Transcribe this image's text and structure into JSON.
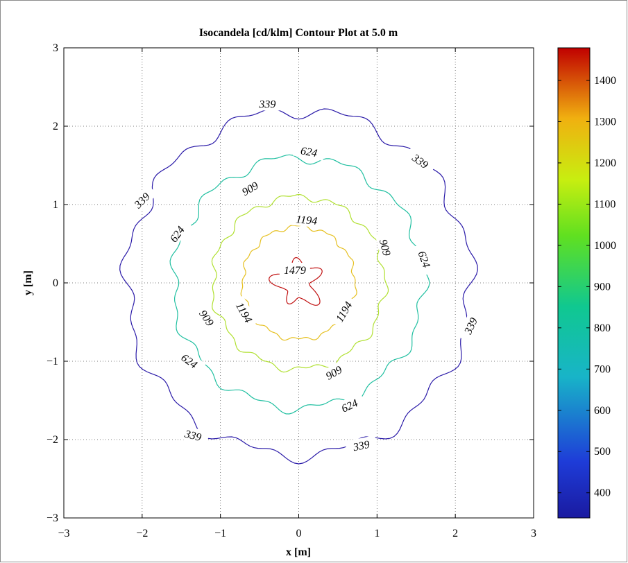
{
  "chart_data": {
    "type": "contour",
    "title": "Isocandela [cd/klm] Contour Plot at 5.0 m",
    "xlabel": "x [m]",
    "ylabel": "y [m]",
    "xlim": [
      -3,
      3
    ],
    "ylim": [
      -3,
      3
    ],
    "xticks": [
      -3,
      -2,
      -1,
      0,
      1,
      2,
      3
    ],
    "yticks": [
      -3,
      -2,
      -1,
      0,
      1,
      2,
      3
    ],
    "grid": true,
    "colorbar": {
      "range": [
        339,
        1479
      ],
      "ticks": [
        400,
        500,
        600,
        700,
        800,
        900,
        1000,
        1100,
        1200,
        1300,
        1400
      ],
      "colormap": "jet"
    },
    "levels": [
      {
        "value": 339,
        "radius_m": 2.2,
        "color": "#2a1aa8",
        "labels": [
          {
            "text": "339",
            "x": -0.4,
            "y": 2.28,
            "rot": 0
          },
          {
            "text": "339",
            "x": 1.55,
            "y": 1.55,
            "rot": 35
          },
          {
            "text": "339",
            "x": -2.0,
            "y": 1.05,
            "rot": -45
          },
          {
            "text": "339",
            "x": 2.2,
            "y": -0.55,
            "rot": -65
          },
          {
            "text": "339",
            "x": -1.35,
            "y": -1.95,
            "rot": 15
          },
          {
            "text": "339",
            "x": 0.8,
            "y": -2.08,
            "rot": -12
          }
        ]
      },
      {
        "value": 624,
        "radius_m": 1.6,
        "color": "#1fbfa0",
        "labels": [
          {
            "text": "624",
            "x": 0.13,
            "y": 1.67,
            "rot": 10
          },
          {
            "text": "624",
            "x": -1.55,
            "y": 0.62,
            "rot": -55
          },
          {
            "text": "624",
            "x": 1.6,
            "y": 0.3,
            "rot": 70
          },
          {
            "text": "624",
            "x": -1.4,
            "y": -1.0,
            "rot": 35
          },
          {
            "text": "624",
            "x": 0.65,
            "y": -1.57,
            "rot": -25
          }
        ]
      },
      {
        "value": 909,
        "radius_m": 1.1,
        "color": "#b0e030",
        "labels": [
          {
            "text": "909",
            "x": -0.62,
            "y": 1.2,
            "rot": -30
          },
          {
            "text": "909",
            "x": 1.1,
            "y": 0.45,
            "rot": 75
          },
          {
            "text": "909",
            "x": -1.18,
            "y": -0.45,
            "rot": 55
          },
          {
            "text": "909",
            "x": 0.45,
            "y": -1.15,
            "rot": -30
          }
        ]
      },
      {
        "value": 1194,
        "radius_m": 0.72,
        "color": "#e6c020",
        "labels": [
          {
            "text": "1194",
            "x": 0.1,
            "y": 0.8,
            "rot": 5
          },
          {
            "text": "1194",
            "x": -0.7,
            "y": -0.38,
            "rot": 60
          },
          {
            "text": "1194",
            "x": 0.58,
            "y": -0.37,
            "rot": -60
          }
        ]
      },
      {
        "value": 1479,
        "radius_m": 0.18,
        "color": "#c01010",
        "labels": [
          {
            "text": "1479",
            "x": -0.05,
            "y": 0.16,
            "rot": 0
          }
        ]
      }
    ]
  }
}
